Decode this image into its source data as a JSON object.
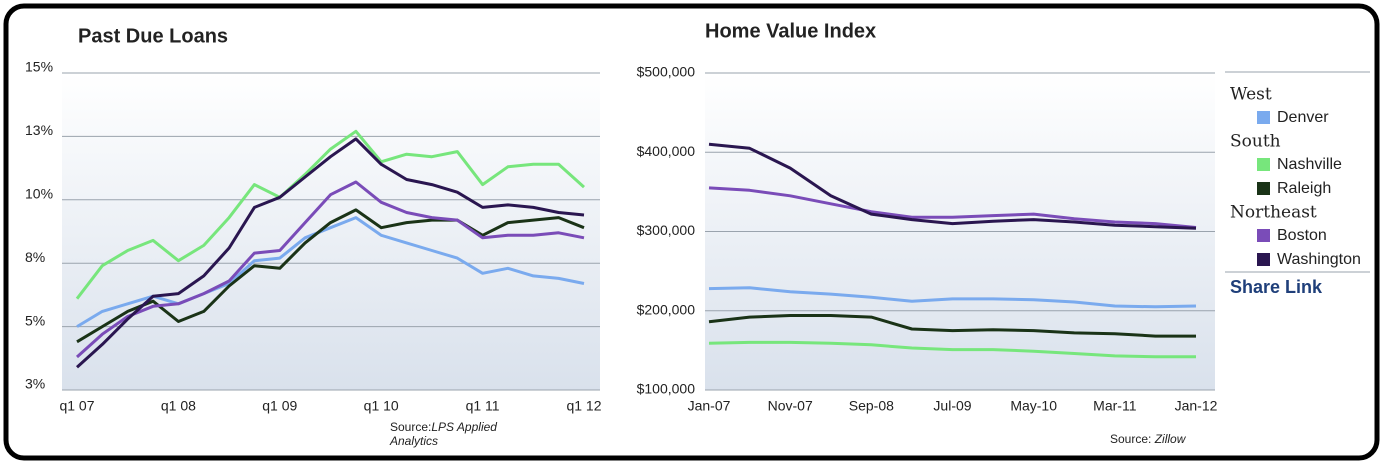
{
  "chart_data": [
    {
      "type": "line",
      "title": "Past Due Loans",
      "categories": [
        "q1 07",
        null,
        null,
        null,
        "q1 08",
        null,
        null,
        null,
        "q1 09",
        null,
        null,
        null,
        "q1 10",
        null,
        null,
        null,
        "q1 11",
        null,
        null,
        null,
        "q1 12"
      ],
      "series": [
        {
          "name": "Denver",
          "color": "#7aaaee",
          "values": [
            5.0,
            5.6,
            5.9,
            6.2,
            5.9,
            6.3,
            6.7,
            7.6,
            7.7,
            8.5,
            8.9,
            9.3,
            8.6,
            8.3,
            8.0,
            7.7,
            7.1,
            7.3,
            7.0,
            6.9,
            6.7
          ]
        },
        {
          "name": "Nashville",
          "color": "#77e67c",
          "values": [
            6.1,
            7.4,
            8.0,
            8.4,
            7.6,
            8.2,
            9.3,
            10.6,
            10.1,
            11.0,
            12.0,
            12.7,
            11.5,
            11.8,
            11.7,
            11.9,
            10.6,
            11.3,
            11.4,
            11.4,
            10.5
          ]
        },
        {
          "name": "Raleigh",
          "color": "#1a3317",
          "values": [
            4.4,
            5.0,
            5.6,
            6.0,
            5.2,
            5.6,
            6.6,
            7.4,
            7.3,
            8.3,
            9.1,
            9.6,
            8.9,
            9.1,
            9.2,
            9.2,
            8.6,
            9.1,
            9.2,
            9.3,
            8.9
          ]
        },
        {
          "name": "Boston",
          "color": "#7a4cb8",
          "values": [
            3.8,
            4.7,
            5.4,
            5.8,
            5.9,
            6.3,
            6.8,
            7.9,
            8.0,
            9.1,
            10.2,
            10.7,
            9.9,
            9.5,
            9.3,
            9.2,
            8.5,
            8.6,
            8.6,
            8.7,
            8.5
          ]
        },
        {
          "name": "Washington",
          "color": "#2a1650",
          "values": [
            3.4,
            4.3,
            5.3,
            6.2,
            6.3,
            7.0,
            8.1,
            9.7,
            10.1,
            10.9,
            11.7,
            12.4,
            11.4,
            10.8,
            10.6,
            10.3,
            9.7,
            9.8,
            9.7,
            9.5,
            9.4
          ]
        }
      ],
      "ylim": [
        2.5,
        15
      ],
      "yticks": [
        {
          "value": 2.5,
          "label": "3%"
        },
        {
          "value": 5,
          "label": "5%"
        },
        {
          "value": 7.5,
          "label": "8%"
        },
        {
          "value": 10,
          "label": "10%"
        },
        {
          "value": 12.5,
          "label": "13%"
        },
        {
          "value": 15,
          "label": "15%"
        }
      ],
      "grid": true,
      "source": {
        "label": "Source:",
        "name": "LPS Applied Analytics"
      }
    },
    {
      "type": "line",
      "title": "Home Value Index",
      "categories": [
        "Jan-07",
        null,
        "Nov-07",
        null,
        "Sep-08",
        null,
        "Jul-09",
        null,
        "May-10",
        null,
        "Mar-11",
        null,
        "Jan-12"
      ],
      "series": [
        {
          "name": "Denver",
          "group": "West",
          "color": "#7aaaee",
          "values": [
            228000,
            229000,
            224000,
            221000,
            217000,
            212000,
            215000,
            215000,
            214000,
            211000,
            206000,
            205000,
            206000
          ]
        },
        {
          "name": "Nashville",
          "group": "South",
          "color": "#77e67c",
          "values": [
            159000,
            160000,
            160000,
            159000,
            157000,
            153000,
            151000,
            151000,
            149000,
            146000,
            143000,
            142000,
            142000
          ]
        },
        {
          "name": "Raleigh",
          "group": "South",
          "color": "#1a3317",
          "values": [
            186000,
            192000,
            194000,
            194000,
            192000,
            177000,
            175000,
            176000,
            175000,
            172000,
            171000,
            168000,
            168000
          ]
        },
        {
          "name": "Boston",
          "group": "Northeast",
          "color": "#7a4cb8",
          "values": [
            355000,
            352000,
            345000,
            335000,
            325000,
            318000,
            318000,
            320000,
            322000,
            316000,
            312000,
            310000,
            305000
          ]
        },
        {
          "name": "Washington",
          "group": "Northeast",
          "color": "#2a1650",
          "values": [
            410000,
            405000,
            380000,
            345000,
            322000,
            315000,
            310000,
            313000,
            315000,
            312000,
            308000,
            306000,
            304000
          ]
        }
      ],
      "ylim": [
        100000,
        500000
      ],
      "yticks": [
        {
          "value": 100000,
          "label": "$100,000"
        },
        {
          "value": 200000,
          "label": "$200,000"
        },
        {
          "value": 300000,
          "label": "$300,000"
        },
        {
          "value": 400000,
          "label": "$400,000"
        },
        {
          "value": 500000,
          "label": "$500,000"
        }
      ],
      "grid": true,
      "legend": "right",
      "share_link": "Share Link",
      "source": {
        "label": "Source:",
        "name": "Zillow"
      }
    }
  ]
}
